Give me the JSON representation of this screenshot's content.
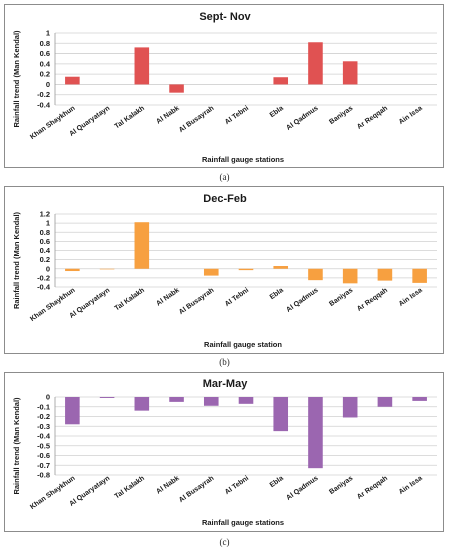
{
  "chart_data": [
    {
      "type": "bar",
      "title": "Sept- Nov",
      "ylabel": "Rainfall trend (Man Kendal)",
      "xlabel": "Rainfall gauge stations",
      "caption": "(a)",
      "ylim": [
        -0.4,
        1
      ],
      "yticks": [
        -0.4,
        -0.2,
        0,
        0.2,
        0.4,
        0.6,
        0.8,
        1
      ],
      "ytick_labels": [
        "-0.4",
        "-0.2",
        "0",
        "0.2",
        "0.4",
        "0.6",
        "0.8",
        "1"
      ],
      "grid": true,
      "color": "#e05252",
      "categories": [
        "Khan Shaykhun",
        "Al Quaryatayn",
        "Tal Kalakh",
        "Al Nabk",
        "Al Busayrah",
        "Al Tebni",
        "Ebla",
        "Al Qadmus",
        "Baniyas",
        "Ar Reqqah",
        "Ain Issa"
      ],
      "values": [
        0.15,
        0,
        0.72,
        -0.16,
        0,
        0,
        0.14,
        0.82,
        0.45,
        0,
        0
      ]
    },
    {
      "type": "bar",
      "title": "Dec-Feb",
      "ylabel": "Rainfall trend (Man Kendal)",
      "xlabel": "Rainfall gauge station",
      "caption": "(b)",
      "ylim": [
        -0.4,
        1.2
      ],
      "yticks": [
        -0.4,
        -0.2,
        0,
        0.2,
        0.4,
        0.6,
        0.8,
        1,
        1.2
      ],
      "ytick_labels": [
        "-0.4",
        "-0.2",
        "0",
        "0.2",
        "0.4",
        "0.6",
        "0.8",
        "1",
        "1.2"
      ],
      "grid": true,
      "color": "#f7a040",
      "categories": [
        "Khan Shaykhun",
        "Al Quaryatayn",
        "Tal Kalakh",
        "Al Nabk",
        "Al Busayrah",
        "Al Tebni",
        "Ebla",
        "Al Qadmus",
        "Baniyas",
        "Ar Reqqah",
        "Ain Issa"
      ],
      "values": [
        -0.05,
        -0.01,
        1.02,
        0,
        -0.15,
        -0.03,
        0.06,
        -0.25,
        -0.32,
        -0.26,
        -0.31
      ]
    },
    {
      "type": "bar",
      "title": "Mar-May",
      "ylabel": "Rainfall trend (Man Kendal)",
      "xlabel": "Rainfall gauge stations",
      "caption": "(c)",
      "ylim": [
        -0.8,
        0
      ],
      "yticks": [
        -0.8,
        -0.7,
        -0.6,
        -0.5,
        -0.4,
        -0.3,
        -0.2,
        -0.1,
        0
      ],
      "ytick_labels": [
        "-0.8",
        "-0.7",
        "-0.6",
        "-0.5",
        "-0.4",
        "-0.3",
        "-0.2",
        "-0.1",
        "0"
      ],
      "grid": true,
      "color": "#9b66b0",
      "categories": [
        "Khan Shaykhun",
        "Al Quaryatayn",
        "Tal Kalakh",
        "Al Nabk",
        "Al Busayrah",
        "Al Tebni",
        "Ebla",
        "Al Qadmus",
        "Baniyas",
        "Ar Reqqah",
        "Ain Issa"
      ],
      "values": [
        -0.28,
        -0.01,
        -0.14,
        -0.05,
        -0.09,
        -0.07,
        -0.35,
        -0.73,
        -0.21,
        -0.1,
        -0.04
      ]
    }
  ]
}
